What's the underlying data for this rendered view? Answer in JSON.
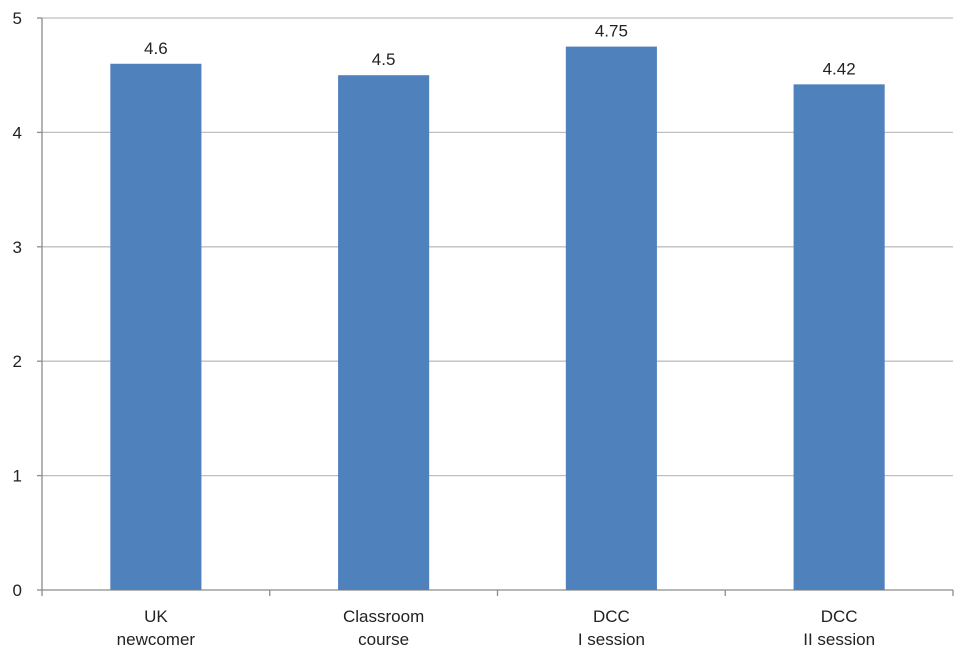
{
  "chart_data": {
    "type": "bar",
    "categories": [
      [
        "UK",
        "newcomer"
      ],
      [
        "Classroom",
        "course"
      ],
      [
        "DCC",
        "I session"
      ],
      [
        "DCC",
        "II session"
      ]
    ],
    "values": [
      4.6,
      4.5,
      4.75,
      4.42
    ],
    "value_labels": [
      "4.6",
      "4.5",
      "4.75",
      "4.42"
    ],
    "yticks": [
      0,
      1,
      2,
      3,
      4,
      5
    ],
    "ylim": [
      0,
      5
    ],
    "grid": true,
    "legend": "none",
    "colors": {
      "bar": "#4F81BD",
      "grid": "#BFBFBF",
      "axis": "#8C8C8C"
    }
  }
}
